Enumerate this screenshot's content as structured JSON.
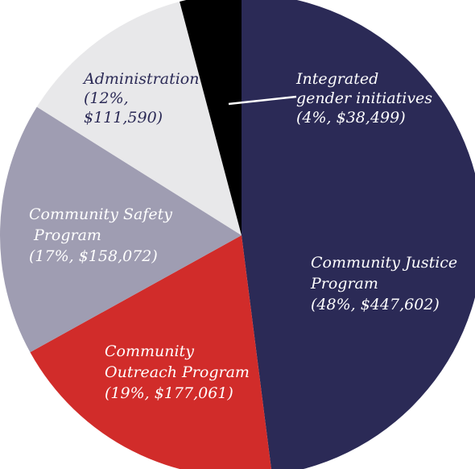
{
  "chart_data": {
    "type": "pie",
    "start_angle_deg": 0,
    "direction": "clockwise",
    "slices": [
      {
        "name": "Community Justice Program",
        "label_lines": [
          "Community Justice",
          "Program",
          "(48%, $447,602)"
        ],
        "percent": 48,
        "value": 447602,
        "color": "#2b2a56",
        "text_color": "#ffffff"
      },
      {
        "name": "Community Outreach Program",
        "label_lines": [
          "Community",
          "Outreach Program",
          "(19%, $177,061)"
        ],
        "percent": 19,
        "value": 177061,
        "color": "#d12c2a",
        "text_color": "#ffffff"
      },
      {
        "name": "Community Safety Program",
        "label_lines": [
          "Community Safety",
          " Program",
          "(17%, $158,072)"
        ],
        "percent": 17,
        "value": 158072,
        "color": "#9f9db2",
        "text_color": "#ffffff"
      },
      {
        "name": "Administration",
        "label_lines": [
          "Administration",
          "(12%,",
          "$111,590)"
        ],
        "percent": 12,
        "value": 111590,
        "color": "#e8e8ea",
        "text_color": "#2b2a56"
      },
      {
        "name": "Integrated gender initiatives",
        "label_lines": [
          "Integrated",
          "gender initiatives",
          "(4%, $38,499)"
        ],
        "percent": 4,
        "value": 38499,
        "color": "#000000",
        "text_color": "#ffffff"
      }
    ]
  }
}
